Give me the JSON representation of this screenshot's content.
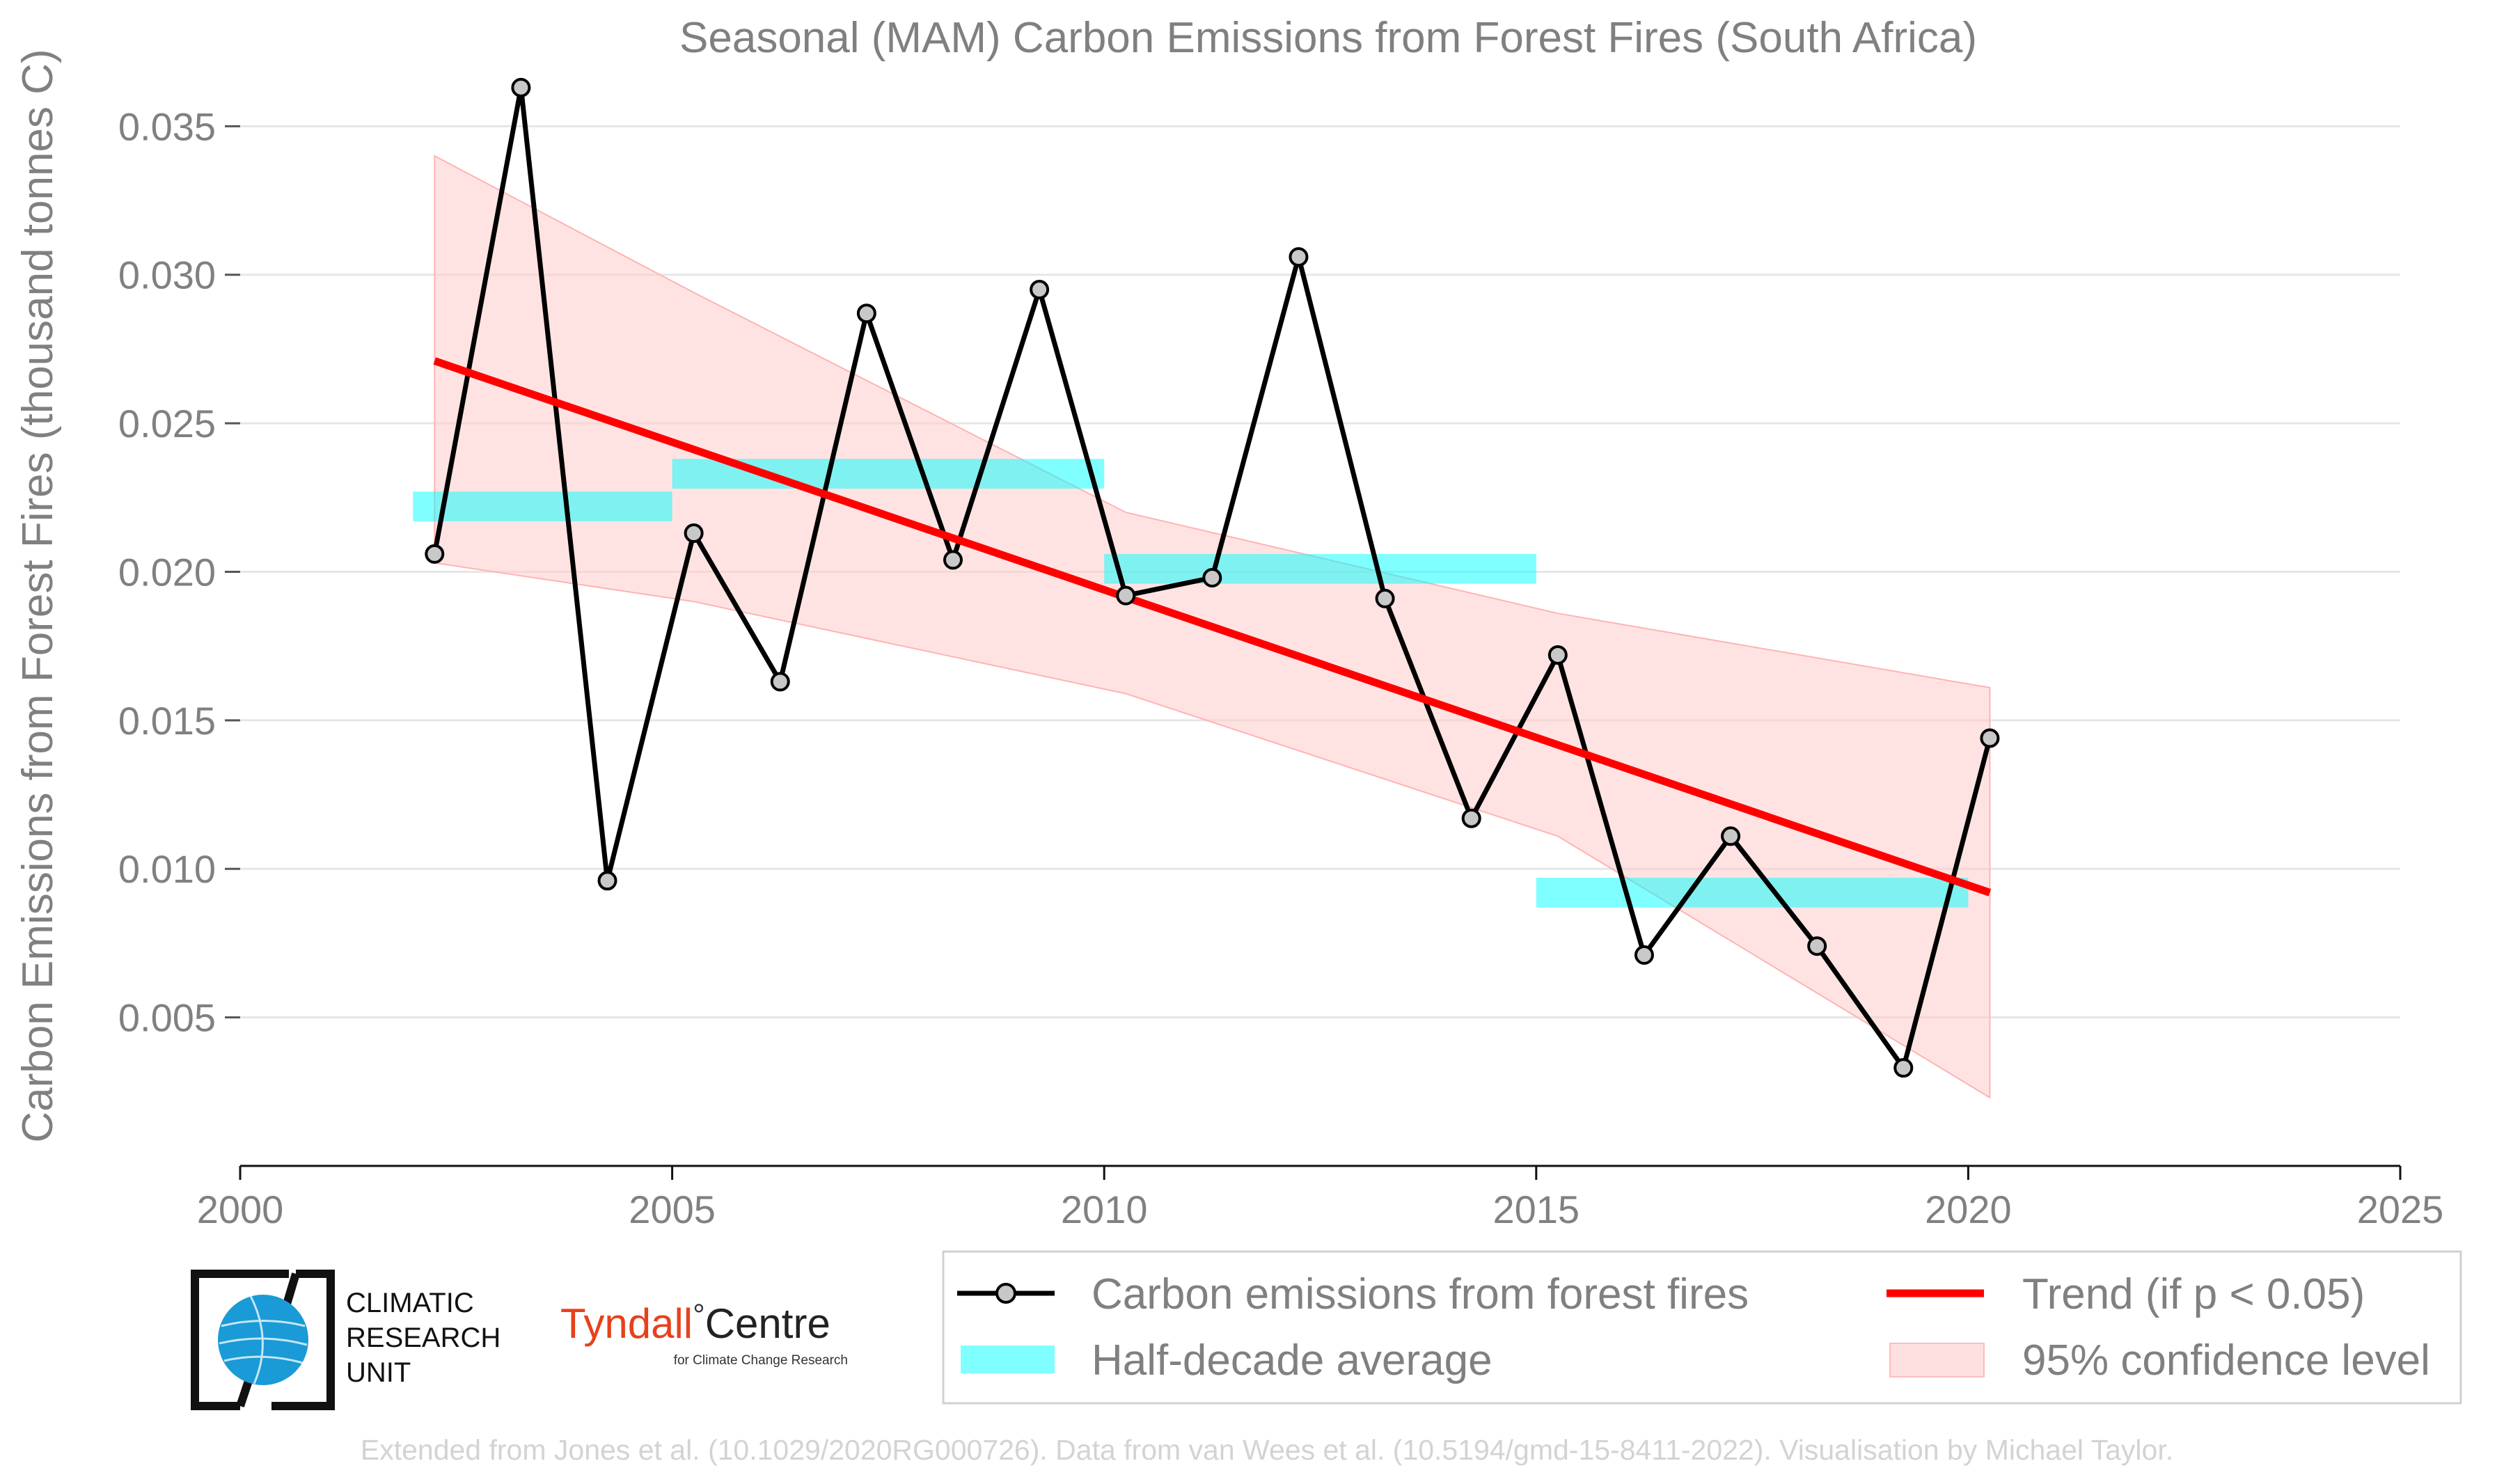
{
  "chart_data": {
    "type": "line",
    "title": "Seasonal (MAM) Carbon Emissions from Forest Fires (South Africa)",
    "xlabel": "",
    "ylabel": "Carbon Emissions from Forest Fires (thousand tonnes C)",
    "xlim": [
      2000,
      2025
    ],
    "ylim": [
      0,
      0.0355
    ],
    "x_ticks": [
      2000,
      2005,
      2010,
      2015,
      2020,
      2025
    ],
    "x_tick_labels": [
      "2000",
      "2005",
      "2010",
      "2015",
      "2020",
      "2025"
    ],
    "y_ticks": [
      0.005,
      0.01,
      0.015,
      0.02,
      0.025,
      0.03,
      0.035
    ],
    "y_tick_labels": [
      "0.005",
      "0.010",
      "0.015",
      "0.020",
      "0.025",
      "0.030",
      "0.035"
    ],
    "grid": true,
    "legend_position": "bottom-right",
    "series": [
      {
        "name": "Carbon emissions from forest fires",
        "kind": "line-markers",
        "color": "#000000",
        "marker_fill": "#c8c8c8",
        "x": [
          2002,
          2003,
          2004,
          2005,
          2006,
          2007,
          2008,
          2009,
          2010,
          2011,
          2012,
          2013,
          2014,
          2015,
          2016,
          2017,
          2018,
          2019,
          2020
        ],
        "y": [
          0.0206,
          0.0363,
          0.0096,
          0.0213,
          0.0163,
          0.0287,
          0.0204,
          0.0295,
          0.0192,
          0.0198,
          0.0306,
          0.0191,
          0.0117,
          0.0172,
          0.0071,
          0.0111,
          0.0074,
          0.0033,
          0.0144
        ]
      },
      {
        "name": "Half-decade average",
        "kind": "bands",
        "color": "#00ffff",
        "segments": [
          {
            "x0": 2002,
            "x1": 2005,
            "y": 0.0222
          },
          {
            "x0": 2005,
            "x1": 2010,
            "y": 0.0233
          },
          {
            "x0": 2010,
            "x1": 2015,
            "y": 0.0201
          },
          {
            "x0": 2015,
            "x1": 2020,
            "y": 0.0092
          }
        ]
      },
      {
        "name": "Trend (if p < 0.05)",
        "kind": "trend",
        "color": "#ff0000",
        "x": [
          2002,
          2020
        ],
        "y": [
          0.0271,
          0.0092
        ]
      },
      {
        "name": "95% confidence level",
        "kind": "confidence-band",
        "color": "#ffcccc",
        "x": [
          2002,
          2005,
          2010,
          2015,
          2020
        ],
        "upper": [
          0.034,
          0.0294,
          0.022,
          0.0186,
          0.0161
        ],
        "lower": [
          0.0203,
          0.019,
          0.0159,
          0.0111,
          0.0023
        ]
      }
    ]
  },
  "logos": {
    "cru": {
      "line1": "CLIMATIC",
      "line2": "RESEARCH",
      "line3": "UNIT"
    },
    "tyndall": {
      "main": "Tyndall",
      "degree": "°",
      "centre": "Centre",
      "sub": "for Climate Change Research"
    }
  },
  "credit": "Extended from Jones et al. (10.1029/2020RG000726). Data from van Wees et al. (10.5194/gmd-15-8411-2022). Visualisation by Michael Taylor."
}
